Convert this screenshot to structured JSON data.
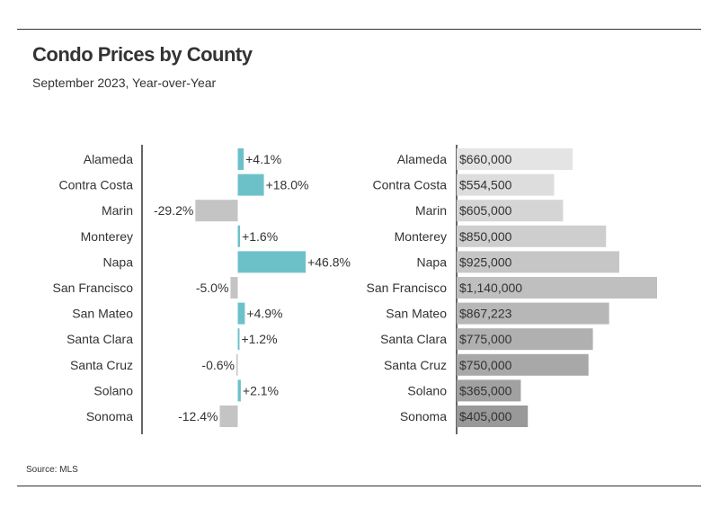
{
  "title": "Condo Prices by County",
  "subtitle": "September 2023, Year-over-Year",
  "source": "Source: MLS",
  "colors": {
    "positive": "#6cc1c9",
    "negative": "#c4c4c4",
    "axis": "#333333",
    "price_gradient_light": "#e4e4e4",
    "price_gradient_dark": "#999999"
  },
  "chart_data": [
    {
      "type": "bar",
      "orientation": "horizontal",
      "title": "",
      "xlabel": "",
      "ylabel": "",
      "categories": [
        "Alameda",
        "Contra Costa",
        "Marin",
        "Monterey",
        "Napa",
        "San Francisco",
        "San Mateo",
        "Santa Clara",
        "Santa Cruz",
        "Solano",
        "Sonoma"
      ],
      "values": [
        4.1,
        18.0,
        -29.2,
        1.6,
        46.8,
        -5.0,
        4.9,
        1.2,
        -0.6,
        2.1,
        -12.4
      ],
      "labels": [
        "+4.1%",
        "+18.0%",
        "-29.2%",
        "+1.6%",
        "+46.8%",
        "-5.0%",
        "+4.9%",
        "+1.2%",
        "-0.6%",
        "+2.1%",
        "-12.4%"
      ],
      "xlim": [
        -60,
        60
      ],
      "grid": false,
      "legend": "none"
    },
    {
      "type": "bar",
      "orientation": "horizontal",
      "title": "",
      "xlabel": "",
      "ylabel": "",
      "categories": [
        "Alameda",
        "Contra Costa",
        "Marin",
        "Monterey",
        "Napa",
        "San Francisco",
        "San Mateo",
        "Santa Clara",
        "Santa Cruz",
        "Solano",
        "Sonoma"
      ],
      "values": [
        660000,
        554500,
        605000,
        850000,
        925000,
        1140000,
        867223,
        775000,
        750000,
        365000,
        405000
      ],
      "labels": [
        "$660,000",
        "$554,500",
        "$605,000",
        "$850,000",
        "$925,000",
        "$1,140,000",
        "$867,223",
        "$775,000",
        "$750,000",
        "$365,000",
        "$405,000"
      ],
      "xlim": [
        0,
        1140000
      ],
      "grid": false,
      "legend": "none"
    }
  ]
}
